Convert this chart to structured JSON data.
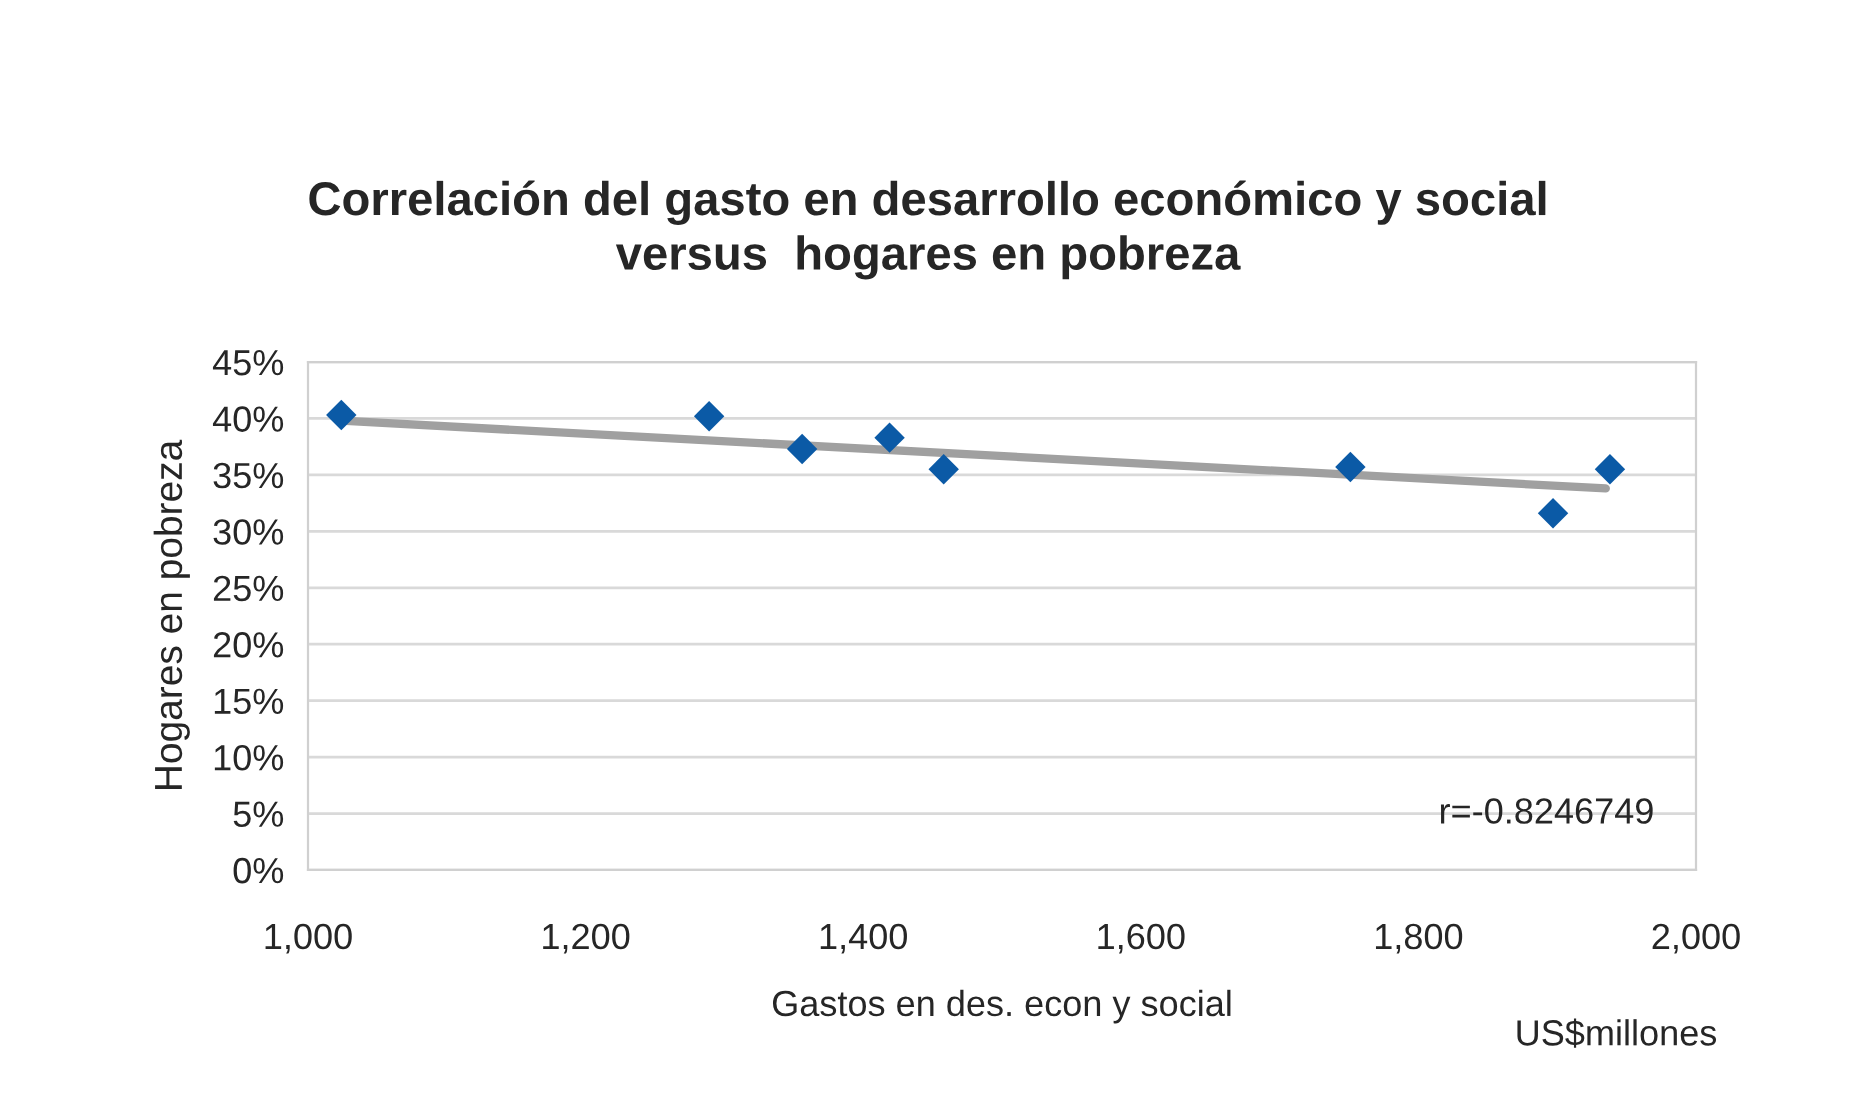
{
  "chart_data": {
    "type": "scatter",
    "title": "Correlación del gasto en desarrollo económico y social\nversus  hogares en pobreza",
    "xlabel": "Gastos en des. econ y social",
    "ylabel": "Hogares en pobreza",
    "annotations": [
      "r=-0.8246749",
      "US$millones"
    ],
    "series": [
      {
        "color": "#0b5aa6",
        "marker": "diamond",
        "x": [
          1024,
          1289,
          1356,
          1419,
          1458,
          1751,
          1897,
          1938
        ],
        "values": [
          40.3,
          40.2,
          37.3,
          38.3,
          35.5,
          35.7,
          31.6,
          35.5
        ]
      },
      {
        "type": "line",
        "color": "#a0a0a0",
        "marker": "none",
        "line_style": "solid",
        "x": [
          1024,
          1935
        ],
        "values": [
          39.8,
          33.8
        ]
      }
    ],
    "xlim": [
      1000,
      2000
    ],
    "xticks": [
      {
        "value": 1000,
        "label": "1,000"
      },
      {
        "value": 1200,
        "label": "1,200"
      },
      {
        "value": 1400,
        "label": "1,400"
      },
      {
        "value": 1600,
        "label": "1,600"
      },
      {
        "value": 1800,
        "label": "1,800"
      },
      {
        "value": 2000,
        "label": "2,000"
      }
    ],
    "ylim": [
      0,
      45
    ],
    "yticks": [
      {
        "value": 0,
        "label": "0%"
      },
      {
        "value": 5,
        "label": "5%"
      },
      {
        "value": 10,
        "label": "10%"
      },
      {
        "value": 15,
        "label": "15%"
      },
      {
        "value": 20,
        "label": "20%"
      },
      {
        "value": 25,
        "label": "25%"
      },
      {
        "value": 30,
        "label": "30%"
      },
      {
        "value": 35,
        "label": "35%"
      },
      {
        "value": 40,
        "label": "40%"
      },
      {
        "value": 45,
        "label": "45%"
      }
    ],
    "grid": "y",
    "legend": false
  }
}
